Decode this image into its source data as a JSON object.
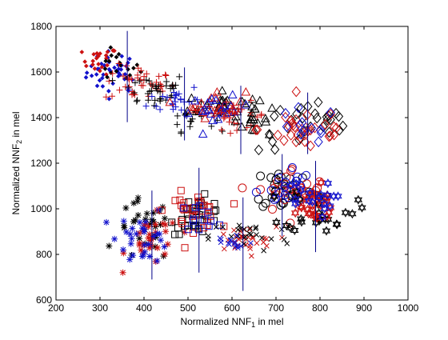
{
  "chart_data": {
    "type": "scatter",
    "xlabel_main": "Normalized NNF",
    "xlabel_sub": "1",
    "xlabel_tail": " in mel",
    "ylabel_main": "Normalized NNF",
    "ylabel_sub": "2",
    "ylabel_tail": " in mel",
    "xlim": [
      200,
      1000
    ],
    "ylim": [
      600,
      1800
    ],
    "xticks": [
      "200",
      "300",
      "400",
      "500",
      "600",
      "700",
      "800",
      "900",
      "1000"
    ],
    "yticks": [
      "600",
      "800",
      "1000",
      "1200",
      "1400",
      "1600",
      "1800"
    ],
    "grid": false,
    "colors": {
      "black": "#000000",
      "red": "#cc1111",
      "blue": "#1111cc",
      "navy": "#000088"
    },
    "clusters": [
      {
        "marker": "dot",
        "color": "blue",
        "center": [
          330,
          1600
        ],
        "spread": [
          30,
          45
        ],
        "count": 40
      },
      {
        "marker": "dot",
        "color": "red",
        "center": [
          300,
          1650
        ],
        "spread": [
          20,
          30
        ],
        "count": 22
      },
      {
        "marker": "dot",
        "color": "black",
        "center": [
          340,
          1620
        ],
        "spread": [
          25,
          35
        ],
        "count": 18
      },
      {
        "marker": "plus",
        "color": "red",
        "center": [
          390,
          1550
        ],
        "spread": [
          40,
          40
        ],
        "count": 40
      },
      {
        "marker": "plus",
        "color": "black",
        "center": [
          420,
          1520
        ],
        "spread": [
          40,
          40
        ],
        "count": 35
      },
      {
        "marker": "plus",
        "color": "blue",
        "center": [
          470,
          1480
        ],
        "spread": [
          30,
          35
        ],
        "count": 25
      },
      {
        "marker": "plus",
        "color": "black",
        "center": [
          510,
          1400
        ],
        "spread": [
          25,
          30
        ],
        "count": 20
      },
      {
        "marker": "triangle",
        "color": "black",
        "center": [
          580,
          1450
        ],
        "spread": [
          40,
          30
        ],
        "count": 30
      },
      {
        "marker": "triangle",
        "color": "red",
        "center": [
          560,
          1460
        ],
        "spread": [
          35,
          30
        ],
        "count": 22
      },
      {
        "marker": "triangle",
        "color": "blue",
        "center": [
          570,
          1430
        ],
        "spread": [
          35,
          30
        ],
        "count": 20
      },
      {
        "marker": "plus",
        "color": "red",
        "center": [
          610,
          1410
        ],
        "spread": [
          35,
          30
        ],
        "count": 30
      },
      {
        "marker": "triangle",
        "color": "black",
        "center": [
          640,
          1390
        ],
        "spread": [
          20,
          25
        ],
        "count": 15
      },
      {
        "marker": "diamond",
        "color": "black",
        "center": [
          780,
          1360
        ],
        "spread": [
          60,
          55
        ],
        "count": 30
      },
      {
        "marker": "diamond",
        "color": "red",
        "center": [
          770,
          1350
        ],
        "spread": [
          55,
          50
        ],
        "count": 32
      },
      {
        "marker": "diamond",
        "color": "blue",
        "center": [
          760,
          1360
        ],
        "spread": [
          40,
          40
        ],
        "count": 12
      },
      {
        "marker": "star",
        "color": "black",
        "center": [
          400,
          900
        ],
        "spread": [
          30,
          70
        ],
        "count": 30
      },
      {
        "marker": "star",
        "color": "red",
        "center": [
          420,
          860
        ],
        "spread": [
          30,
          55
        ],
        "count": 32
      },
      {
        "marker": "star",
        "color": "blue",
        "center": [
          400,
          880
        ],
        "spread": [
          30,
          60
        ],
        "count": 30
      },
      {
        "marker": "square",
        "color": "black",
        "center": [
          520,
          970
        ],
        "spread": [
          30,
          40
        ],
        "count": 35
      },
      {
        "marker": "square",
        "color": "red",
        "center": [
          510,
          990
        ],
        "spread": [
          30,
          40
        ],
        "count": 30
      },
      {
        "marker": "square",
        "color": "blue",
        "center": [
          530,
          960
        ],
        "spread": [
          25,
          30
        ],
        "count": 12
      },
      {
        "marker": "cross",
        "color": "red",
        "center": [
          620,
          860
        ],
        "spread": [
          40,
          30
        ],
        "count": 30
      },
      {
        "marker": "cross",
        "color": "black",
        "center": [
          640,
          880
        ],
        "spread": [
          45,
          35
        ],
        "count": 25
      },
      {
        "marker": "cross",
        "color": "blue",
        "center": [
          600,
          850
        ],
        "spread": [
          25,
          25
        ],
        "count": 15
      },
      {
        "marker": "circle",
        "color": "black",
        "center": [
          720,
          1090
        ],
        "spread": [
          35,
          50
        ],
        "count": 28
      },
      {
        "marker": "circle",
        "color": "red",
        "center": [
          740,
          1080
        ],
        "spread": [
          40,
          50
        ],
        "count": 28
      },
      {
        "marker": "circle",
        "color": "blue",
        "center": [
          720,
          1100
        ],
        "spread": [
          30,
          45
        ],
        "count": 18
      },
      {
        "marker": "hexagram",
        "color": "black",
        "center": [
          800,
          1000
        ],
        "spread": [
          40,
          50
        ],
        "count": 30
      },
      {
        "marker": "hexagram",
        "color": "red",
        "center": [
          780,
          1010
        ],
        "spread": [
          35,
          45
        ],
        "count": 25
      },
      {
        "marker": "hexagram",
        "color": "blue",
        "center": [
          770,
          1040
        ],
        "spread": [
          30,
          40
        ],
        "count": 18
      }
    ],
    "error_bars": [
      {
        "x": 362,
        "y_low": 1380,
        "y_high": 1780
      },
      {
        "x": 492,
        "y_low": 1300,
        "y_high": 1620
      },
      {
        "x": 620,
        "y_low": 1240,
        "y_high": 1540
      },
      {
        "x": 772,
        "y_low": 1240,
        "y_high": 1510
      },
      {
        "x": 418,
        "y_low": 690,
        "y_high": 1080
      },
      {
        "x": 525,
        "y_low": 720,
        "y_high": 1180
      },
      {
        "x": 625,
        "y_low": 640,
        "y_high": 1050
      },
      {
        "x": 714,
        "y_low": 880,
        "y_high": 1240
      },
      {
        "x": 790,
        "y_low": 810,
        "y_high": 1210
      }
    ]
  }
}
